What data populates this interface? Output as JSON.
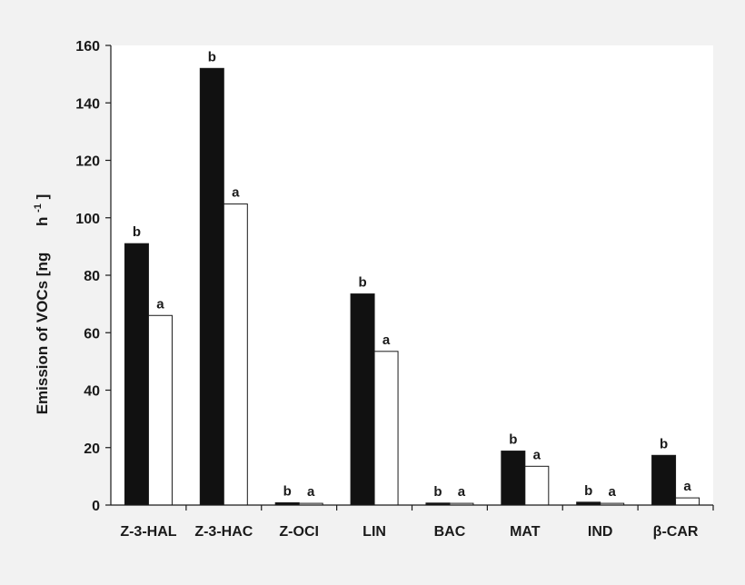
{
  "chart_data": {
    "type": "bar",
    "categories": [
      "Z-3-HAL",
      "Z-3-HAC",
      "Z-OCI",
      "LIN",
      "BAC",
      "MAT",
      "IND",
      "β-CAR"
    ],
    "series": [
      {
        "color": "#111111",
        "values": [
          91,
          152,
          0.8,
          73.5,
          0.7,
          18.8,
          1.0,
          17.3
        ],
        "sig": [
          "b",
          "b",
          "b",
          "b",
          "b",
          "b",
          "b",
          "b"
        ]
      },
      {
        "color": "#ffffff",
        "values": [
          66,
          104.8,
          0.6,
          53.5,
          0.6,
          13.5,
          0.6,
          2.5
        ],
        "sig": [
          "a",
          "a",
          "a",
          "a",
          "a",
          "a",
          "a",
          "a"
        ]
      }
    ],
    "ylabel": "Emission of VOCs [ng",
    "ylabel_unit": "h",
    "ylabel_sup": "-1",
    "ylabel_close": "]",
    "ylim": [
      0,
      160
    ],
    "yticks": [
      "0",
      "20",
      "40",
      "60",
      "80",
      "100",
      "120",
      "140",
      "160"
    ],
    "grid": false,
    "legend": "none"
  }
}
